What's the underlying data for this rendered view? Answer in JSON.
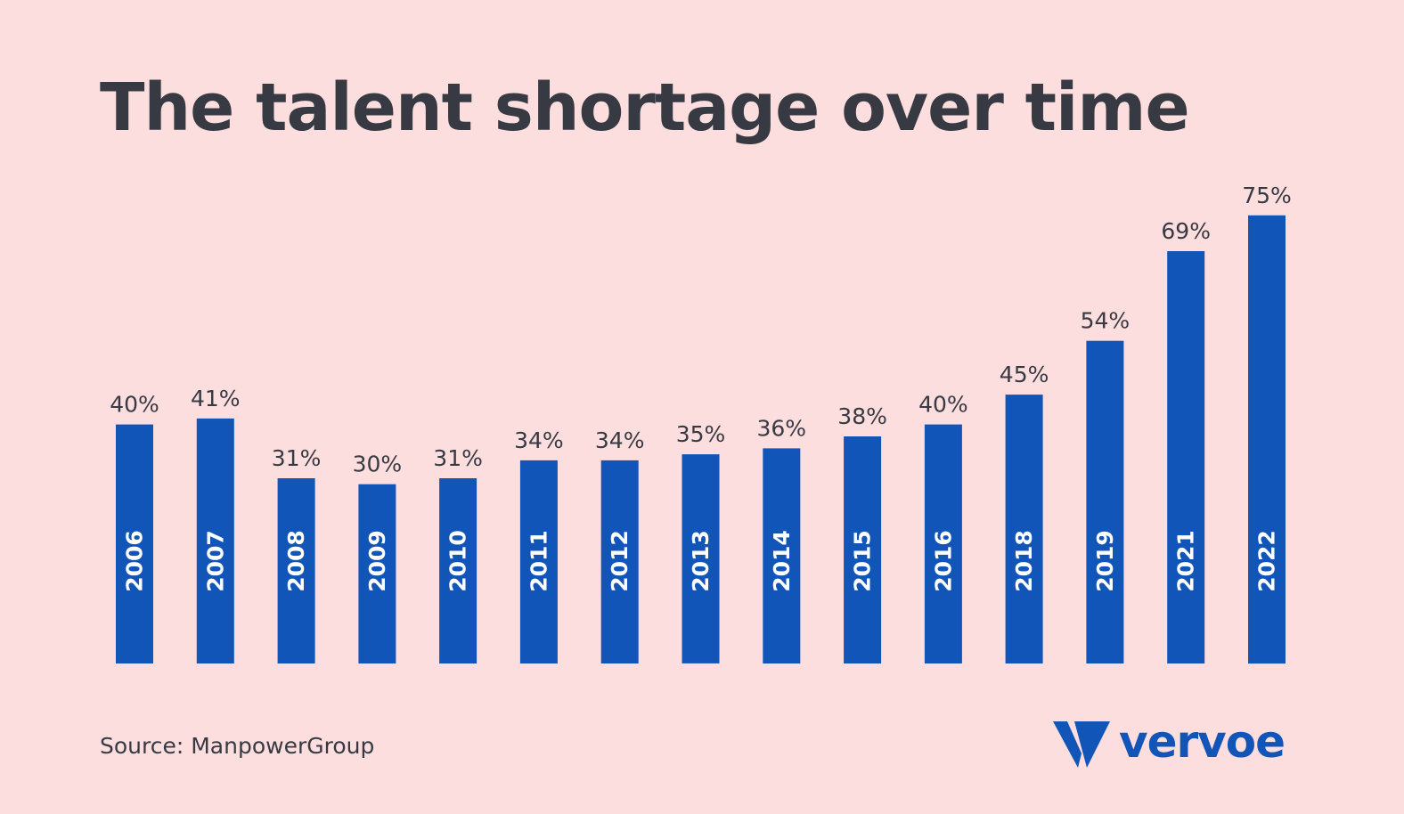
{
  "title": "The talent shortage over time",
  "source": "Source: ManpowerGroup",
  "brand": "vervoe",
  "colors": {
    "background": "#FDDEDE",
    "bar": "#1155B8",
    "text": "#383A43",
    "bar_label": "#FFFFFF"
  },
  "chart_data": {
    "type": "bar",
    "title": "The talent shortage over time",
    "xlabel": "",
    "ylabel": "",
    "categories": [
      "2006",
      "2007",
      "2008",
      "2009",
      "2010",
      "2011",
      "2012",
      "2013",
      "2014",
      "2015",
      "2016",
      "2018",
      "2019",
      "2021",
      "2022"
    ],
    "values": [
      40,
      41,
      31,
      30,
      31,
      34,
      34,
      35,
      36,
      38,
      40,
      45,
      54,
      69,
      75
    ],
    "value_labels": [
      "40%",
      "41%",
      "31%",
      "30%",
      "31%",
      "34%",
      "34%",
      "35%",
      "36%",
      "38%",
      "40%",
      "45%",
      "54%",
      "69%",
      "75%"
    ],
    "unit": "%",
    "ylim": [
      0,
      75
    ],
    "grid": false,
    "legend": "none"
  }
}
